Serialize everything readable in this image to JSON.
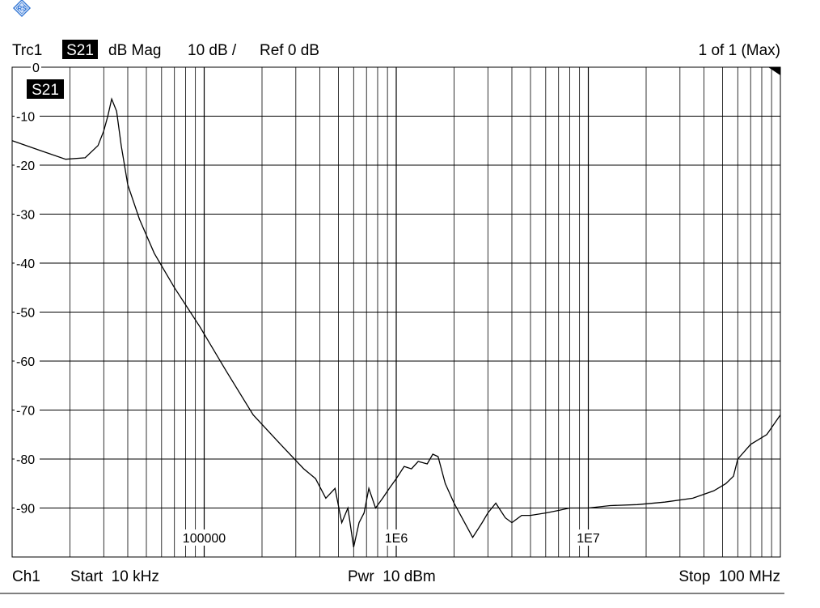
{
  "header": {
    "trace_name": "Trc1",
    "measurement": "S21",
    "format": "dB Mag",
    "scale": "10 dB /",
    "reference": "Ref 0 dB",
    "sweep_count": "1 of 1 (Max)"
  },
  "trace_label": "S21",
  "footer": {
    "channel": "Ch1",
    "start": "Start  10 kHz",
    "power": "Pwr  10 dBm",
    "stop": "Stop  100 MHz"
  },
  "colors": {
    "background": "#ffffff",
    "grid": "#000000",
    "trace": "#000000",
    "label_bg": "#000000",
    "label_fg": "#ffffff",
    "logo": "#3a7bd5"
  },
  "logo_icon": "rohde-schwarz-logo-icon",
  "chart_data": {
    "type": "line",
    "title": "",
    "xlabel": "",
    "ylabel": "",
    "x_scale": "log",
    "xlim": [
      10000,
      100000000
    ],
    "ylim": [
      -100,
      0
    ],
    "grid": true,
    "y_ticks": [
      0,
      -10,
      -20,
      -30,
      -40,
      -50,
      -60,
      -70,
      -80,
      -90
    ],
    "y_tick_labels": [
      "0",
      "-10",
      "-20",
      "-30",
      "-40",
      "-50",
      "-60",
      "-70",
      "-80",
      "-90"
    ],
    "x_tick_labels": [
      {
        "value": 100000,
        "label": "100000"
      },
      {
        "value": 1000000,
        "label": "1E6"
      },
      {
        "value": 10000000,
        "label": "1E7"
      }
    ],
    "series": [
      {
        "x": [
          10000,
          14000,
          19000,
          24000,
          28000,
          30000,
          31500,
          33000,
          35000,
          37000,
          40000,
          46000,
          55000,
          70000,
          95000,
          130000,
          180000,
          250000,
          330000,
          380000,
          430000,
          480000,
          520000,
          560000,
          600000,
          640000,
          680000,
          720000,
          780000,
          850000,
          920000,
          1000000,
          1100000,
          1200000,
          1300000,
          1450000,
          1550000,
          1650000,
          1800000,
          2000000,
          2200000,
          2500000,
          2800000,
          3000000,
          3300000,
          3700000,
          4000000,
          4500000,
          5000000,
          6000000,
          7000000,
          8000000,
          10000000,
          13000000,
          18000000,
          25000000,
          35000000,
          45000000,
          52000000,
          57000000,
          60000000,
          70000000,
          85000000,
          100000000
        ],
        "y": [
          -15,
          -17,
          -18.8,
          -18.5,
          -16,
          -13,
          -10,
          -6.5,
          -9,
          -16,
          -24,
          -31,
          -38,
          -45,
          -53,
          -62,
          -71,
          -77,
          -82,
          -84,
          -88,
          -86,
          -93,
          -90,
          -98,
          -93,
          -91,
          -86,
          -90,
          -88,
          -86,
          -84,
          -81.5,
          -82,
          -80.5,
          -81,
          -79,
          -79.5,
          -85,
          -89,
          -92,
          -96,
          -93,
          -91,
          -89,
          -92,
          -93,
          -91.5,
          -91.5,
          -91,
          -90.5,
          -90,
          -90,
          -89.5,
          -89.3,
          -88.8,
          -88,
          -86.5,
          -85,
          -83.5,
          -80,
          -77,
          -75,
          -71
        ]
      }
    ]
  }
}
